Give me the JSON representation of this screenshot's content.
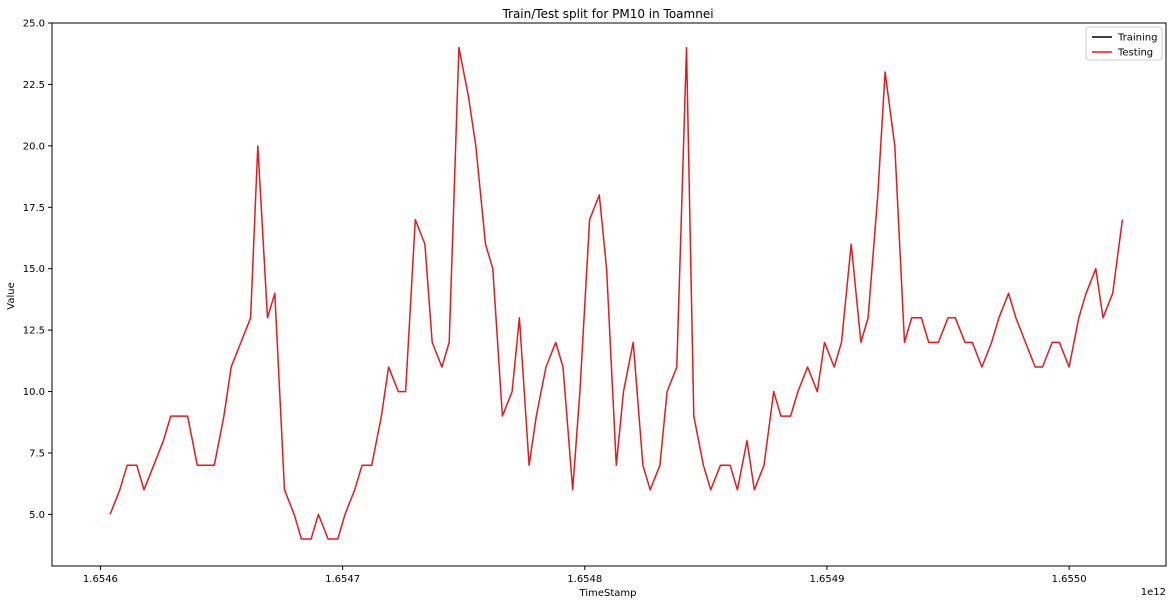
{
  "chart_data": {
    "type": "line",
    "title": "Train/Test split for PM10 in Toamnei",
    "xlabel": "TimeStamp",
    "ylabel": "Value",
    "x_offset_label": "1e12",
    "xlim": [
      1.65458,
      1.65504
    ],
    "ylim": [
      2.9,
      25.0
    ],
    "x_ticks": [
      1.6546,
      1.6547,
      1.6548,
      1.6549,
      1.655
    ],
    "x_tick_labels": [
      "1.6546",
      "1.6547",
      "1.6548",
      "1.6549",
      "1.6550"
    ],
    "y_ticks": [
      5.0,
      7.5,
      10.0,
      12.5,
      15.0,
      17.5,
      20.0,
      22.5,
      25.0
    ],
    "y_tick_labels": [
      "5.0",
      "7.5",
      "10.0",
      "12.5",
      "15.0",
      "17.5",
      "20.0",
      "22.5",
      "25.0"
    ],
    "grid": false,
    "legend_position": "top-right",
    "series": [
      {
        "name": "Training",
        "color": "#000000",
        "x": [],
        "y": []
      },
      {
        "name": "Testing",
        "color": "#e41a1c",
        "x": [
          1.654604,
          1.654608,
          1.654611,
          1.654615,
          1.654618,
          1.654622,
          1.654626,
          1.654629,
          1.654633,
          1.654636,
          1.65464,
          1.654644,
          1.654647,
          1.654651,
          1.654654,
          1.654658,
          1.654662,
          1.654665,
          1.654669,
          1.654672,
          1.654676,
          1.65468,
          1.654683,
          1.654687,
          1.65469,
          1.654694,
          1.654698,
          1.654701,
          1.654705,
          1.654708,
          1.654712,
          1.654716,
          1.654719,
          1.654723,
          1.654726,
          1.65473,
          1.654734,
          1.654737,
          1.654741,
          1.654744,
          1.654748,
          1.654752,
          1.654755,
          1.654759,
          1.654762,
          1.654766,
          1.65477,
          1.654773,
          1.654777,
          1.65478,
          1.654784,
          1.654788,
          1.654791,
          1.654795,
          1.654798,
          1.654802,
          1.654806,
          1.654809,
          1.654813,
          1.654816,
          1.65482,
          1.654824,
          1.654827,
          1.654831,
          1.654834,
          1.654838,
          1.654842,
          1.654845,
          1.654849,
          1.654852,
          1.654856,
          1.65486,
          1.654863,
          1.654867,
          1.65487,
          1.654874,
          1.654878,
          1.654881,
          1.654885,
          1.654888,
          1.654892,
          1.654896,
          1.654899,
          1.654903,
          1.654906,
          1.65491,
          1.654914,
          1.654917,
          1.654921,
          1.654924,
          1.654928,
          1.654932,
          1.654935,
          1.654939,
          1.654942,
          1.654946,
          1.65495,
          1.654953,
          1.654957,
          1.65496,
          1.654964,
          1.654968,
          1.654971,
          1.654975,
          1.654978,
          1.654982,
          1.654986,
          1.654989,
          1.654993,
          1.654996,
          1.655,
          1.655004,
          1.655007,
          1.655011,
          1.655014,
          1.655018,
          1.655022
        ],
        "y": [
          5,
          6,
          7,
          7,
          6,
          7,
          8,
          9,
          9,
          9,
          7,
          7,
          7,
          9,
          11,
          12,
          13,
          20,
          13,
          14,
          6,
          5,
          4,
          4,
          5,
          4,
          4,
          5,
          6,
          7,
          7,
          9,
          11,
          10,
          10,
          17,
          16,
          12,
          11,
          12,
          24,
          22,
          20,
          16,
          15,
          9,
          10,
          13,
          7,
          9,
          11,
          12,
          11,
          6,
          10,
          17,
          18,
          15,
          7,
          10,
          12,
          7,
          6,
          7,
          10,
          11,
          24,
          9,
          7,
          6,
          7,
          7,
          6,
          8,
          6,
          7,
          10,
          9,
          9,
          10,
          11,
          10,
          12,
          11,
          12,
          16,
          12,
          13,
          18,
          23,
          20,
          12,
          13,
          13,
          12,
          12,
          13,
          13,
          12,
          12,
          11,
          12,
          13,
          14,
          13,
          12,
          11,
          11,
          12,
          12,
          11,
          13,
          14,
          15,
          13,
          14,
          17
        ]
      }
    ]
  }
}
